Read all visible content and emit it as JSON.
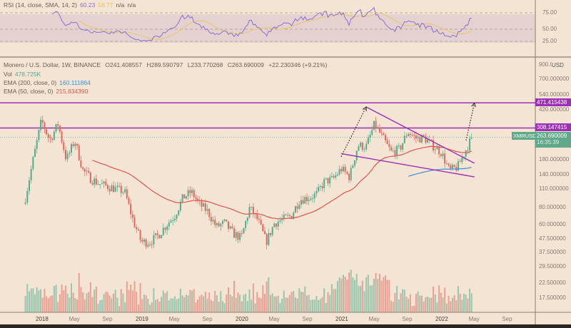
{
  "rsi_legend": {
    "label": "RSI (14, close, SMA, 14, 2)",
    "rsi": "60.23",
    "sma": "58.77",
    "v3": "n/a",
    "v4": "n/a",
    "ticks": [
      "75.00",
      "50.00",
      "25.00"
    ]
  },
  "legend": {
    "symbol": "Monero / U.S. Dollar, 1W, BINANCE",
    "open": "O241.408557",
    "high": "H289.590797",
    "low": "L233.770268",
    "close": "C263.690009",
    "change": "+22.230346 (+9.21%)",
    "vol_label": "Vol",
    "vol_value": "478.725K",
    "ema200_label": "EMA (200, close, 0)",
    "ema200_value": "160.111864",
    "ema50_label": "EMA (50, close, 0)",
    "ema50_value": "215.634390"
  },
  "price_axis": {
    "currency": "USD",
    "ticks": [
      "900.000000",
      "700.000000",
      "540.000000",
      "420.000000",
      "180.000000",
      "140.000000",
      "110.000000",
      "80.000000",
      "60.000000",
      "47.500000",
      "37.500000",
      "29.500000",
      "22.500000",
      "17.500000"
    ]
  },
  "price_labels": {
    "level1": "471.415438",
    "level2": "308.147415",
    "symbol": "XMRUSD",
    "last": "263.690009",
    "countdown": "16:35:39"
  },
  "colors": {
    "up": "#4fae8c",
    "down": "#e4675d",
    "ema50": "#e05555",
    "ema200": "#3d8ee0",
    "levels": "#9b2fb5",
    "rsi": "#8a6fd6",
    "rsi_sma": "#e8c65a",
    "bg": "#f4e4d4"
  },
  "chart_data": {
    "type": "candlestick",
    "title": "Monero / U.S. Dollar, 1W, BINANCE",
    "y_scale": "log",
    "ylim": [
      15,
      1000
    ],
    "x_ticks": [
      "2018",
      "May",
      "Sep",
      "2019",
      "May",
      "Sep",
      "2020",
      "May",
      "Sep",
      "2021",
      "May",
      "Sep",
      "2022",
      "May",
      "Sep"
    ],
    "approx_closes": {
      "dates": [
        "2017-11",
        "2017-12",
        "2018-01",
        "2018-02",
        "2018-03",
        "2018-04",
        "2018-05",
        "2018-06",
        "2018-07",
        "2018-08",
        "2018-09",
        "2018-10",
        "2018-11",
        "2018-12",
        "2019-01",
        "2019-02",
        "2019-03",
        "2019-04",
        "2019-05",
        "2019-06",
        "2019-07",
        "2019-08",
        "2019-09",
        "2019-10",
        "2019-11",
        "2019-12",
        "2020-01",
        "2020-02",
        "2020-03",
        "2020-04",
        "2020-05",
        "2020-06",
        "2020-07",
        "2020-08",
        "2020-09",
        "2020-10",
        "2020-11",
        "2020-12",
        "2021-01",
        "2021-02",
        "2021-03",
        "2021-04",
        "2021-05",
        "2021-06",
        "2021-07",
        "2021-08",
        "2021-09",
        "2021-10",
        "2021-11",
        "2021-12",
        "2022-01",
        "2022-02",
        "2022-03",
        "2022-04"
      ],
      "values": [
        90,
        180,
        350,
        250,
        330,
        180,
        250,
        150,
        130,
        120,
        115,
        110,
        105,
        65,
        45,
        45,
        50,
        60,
        70,
        95,
        105,
        85,
        75,
        58,
        62,
        52,
        48,
        80,
        65,
        45,
        62,
        66,
        70,
        92,
        95,
        100,
        125,
        130,
        155,
        135,
        230,
        225,
        330,
        260,
        205,
        215,
        290,
        260,
        260,
        230,
        205,
        150,
        160,
        215
      ]
    },
    "last_close": 263.69,
    "horizontal_levels": [
      471.415438,
      308.147415
    ],
    "trendlines": [
      {
        "from": [
          "2021-04",
          440
        ],
        "to": [
          "2022-05",
          170
        ],
        "style": "solid"
      },
      {
        "from": [
          "2021-01",
          200
        ],
        "to": [
          "2022-05",
          135
        ],
        "style": "solid"
      },
      {
        "from": [
          "2021-01",
          190
        ],
        "to": [
          "2021-04",
          440
        ],
        "style": "dotted-arrow"
      },
      {
        "from": [
          "2022-04",
          250
        ],
        "to": [
          "2022-05",
          470
        ],
        "style": "dotted-arrow"
      }
    ]
  }
}
